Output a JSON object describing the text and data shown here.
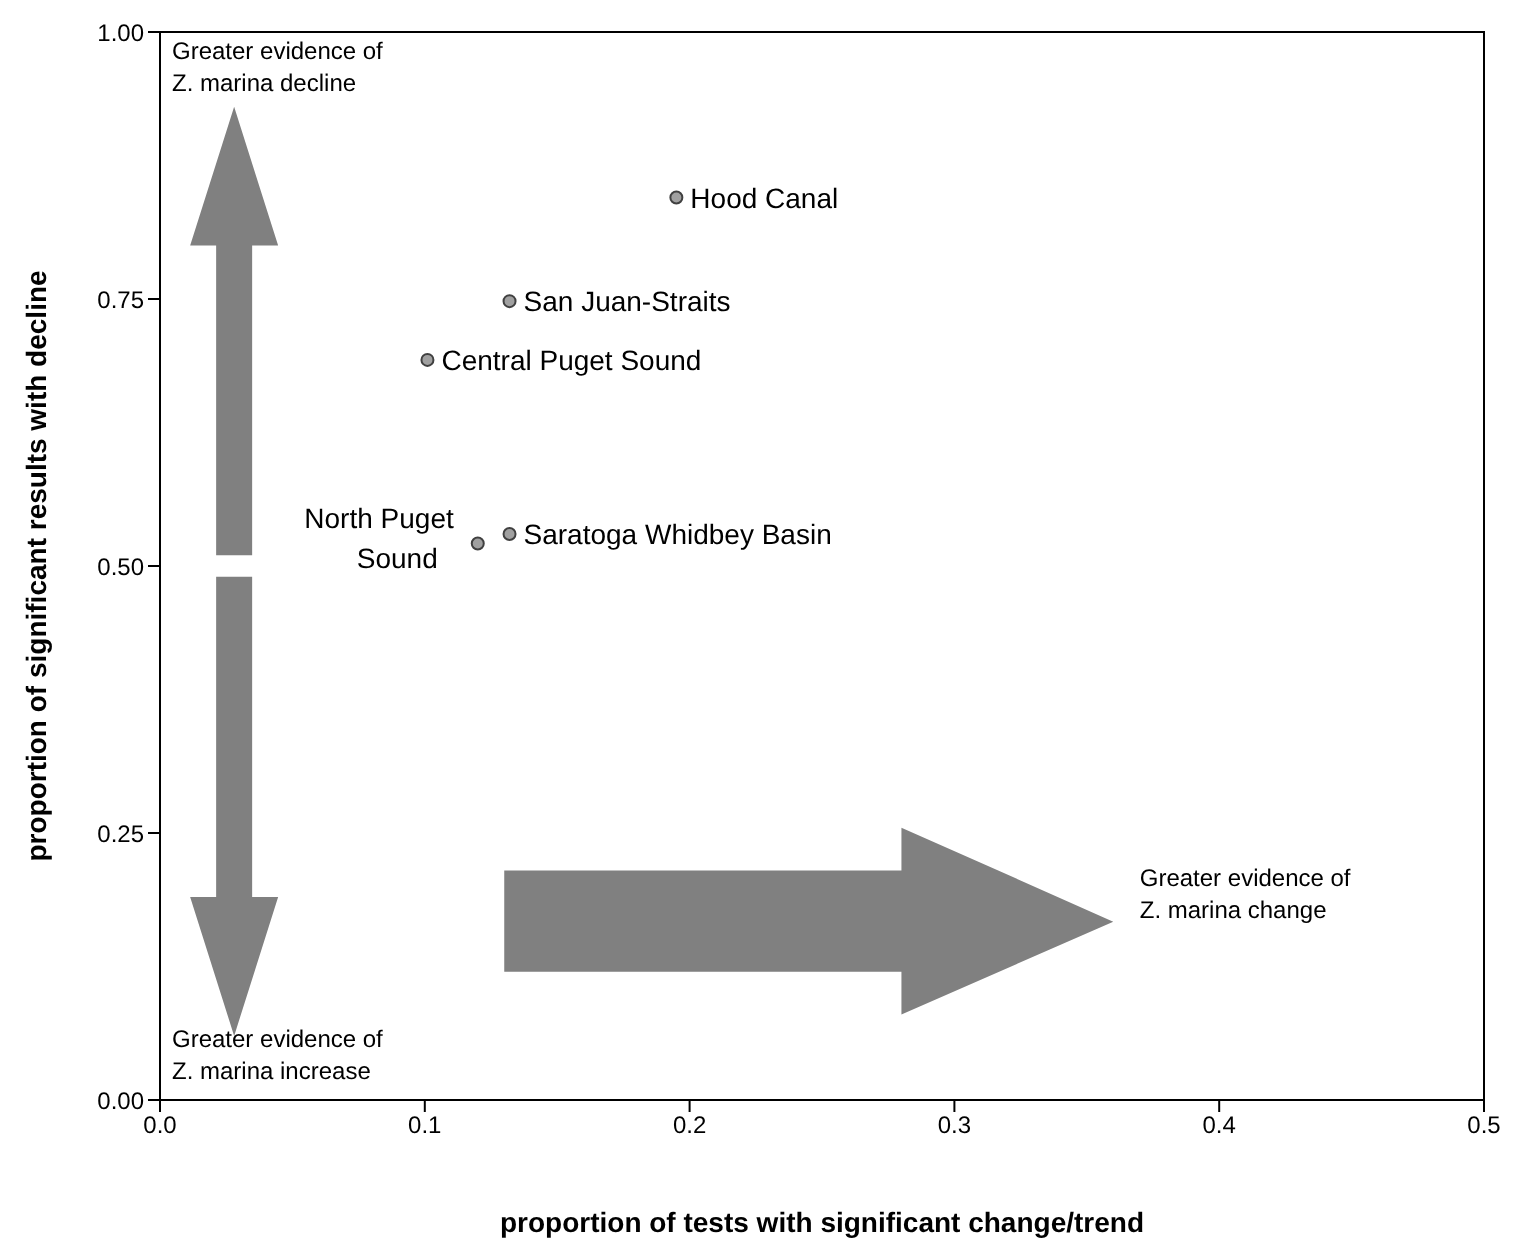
{
  "chart_data": {
    "type": "scatter",
    "xlabel": "proportion of tests with significant change/trend",
    "ylabel": "proportion of significant results with decline",
    "x": [
      0.195,
      0.132,
      0.101,
      0.12,
      0.132
    ],
    "values": [
      0.845,
      0.748,
      0.693,
      0.521,
      0.53
    ],
    "color": "#a0a0a0",
    "marker": "circle",
    "xlim": [
      0,
      0.5
    ],
    "xticks": [
      {
        "value": 0,
        "label": "0.0"
      },
      {
        "value": 0.1,
        "label": "0.1"
      },
      {
        "value": 0.2,
        "label": "0.2"
      },
      {
        "value": 0.3,
        "label": "0.3"
      },
      {
        "value": 0.4,
        "label": "0.4"
      },
      {
        "value": 0.5,
        "label": "0.5"
      }
    ],
    "ylim": [
      0,
      1
    ],
    "yticks": [
      {
        "value": 0,
        "label": "0.00"
      },
      {
        "value": 0.25,
        "label": "0.25"
      },
      {
        "value": 0.5,
        "label": "0.50"
      },
      {
        "value": 0.75,
        "label": "0.75"
      },
      {
        "value": 1,
        "label": "1.00"
      }
    ],
    "annotations": [
      {
        "text": "Hood Canal",
        "x": 0.195,
        "y": 0.845
      },
      {
        "text": "San Juan-Straits",
        "x": 0.132,
        "y": 0.748
      },
      {
        "text": "Central Puget Sound",
        "x": 0.101,
        "y": 0.693
      },
      {
        "text": "North Puget Sound",
        "x": 0.12,
        "y": 0.521
      },
      {
        "text": "Saratoga Whidbey Basin",
        "x": 0.132,
        "y": 0.53
      },
      "Greater evidence of Z. marina decline",
      "Greater evidence of Z. marina increase",
      "Greater evidence of Z. marina change"
    ]
  }
}
